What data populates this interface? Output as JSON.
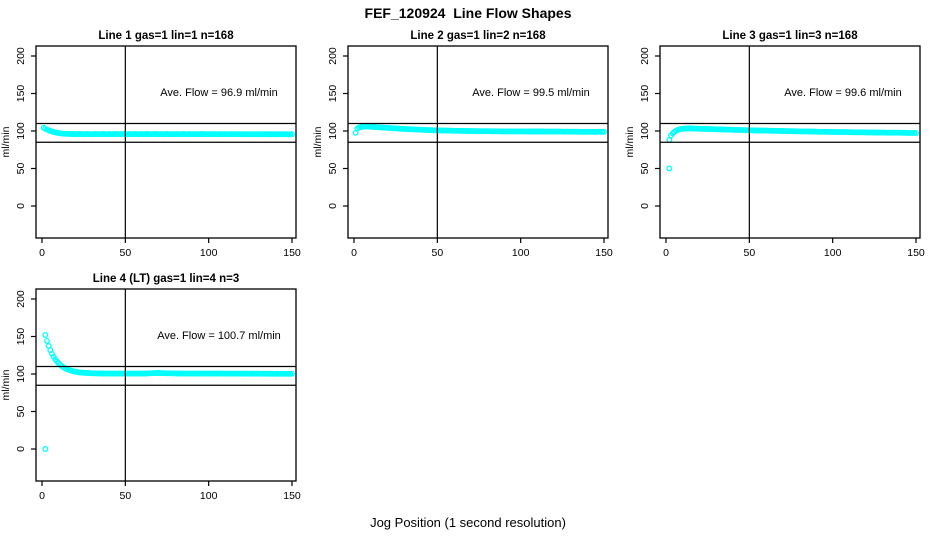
{
  "main_title": "FEF_120924  Line Flow Shapes",
  "xlabel": "Jog Position (1 second resolution)",
  "colors": {
    "point": "#00FFFF",
    "axis": "#000000",
    "text": "#000000",
    "background": "#FFFFFF"
  },
  "chart_data": [
    {
      "type": "scatter",
      "title": "Line 1 gas=1 lin=1 n=168",
      "annotation": "Ave. Flow =  96.9  ml/min",
      "ave_flow_ml_min": 96.9,
      "ylabel": "ml/min",
      "xticks": [
        0,
        50,
        100,
        150
      ],
      "yticks": [
        0,
        50,
        100,
        150,
        200
      ],
      "xlim": [
        0,
        150
      ],
      "ylim": [
        0,
        200
      ],
      "grid": false,
      "marker": "open-circle",
      "ref_hlines": [
        110,
        85
      ],
      "ref_vline": 50,
      "series": {
        "x0": 1,
        "dx": 1,
        "y": [
          104.2,
          103.0,
          101.9,
          101.0,
          100.1,
          99.4,
          98.7,
          98.1,
          97.6,
          97.2,
          96.9,
          96.6,
          96.4,
          96.3,
          96.2,
          96.1,
          96.0,
          96.0,
          95.9,
          95.9,
          95.8,
          95.9,
          96.0,
          95.9,
          95.8,
          95.9,
          96.0,
          95.9,
          95.8,
          95.8,
          95.9,
          96.0,
          95.9,
          95.8,
          95.9,
          95.9,
          96.0,
          95.9,
          95.8,
          95.9,
          95.9,
          95.8,
          95.9,
          96.0,
          95.9,
          95.8,
          95.9,
          95.9,
          96.0,
          95.9,
          95.8,
          95.9,
          95.9,
          95.8,
          95.9,
          96.0,
          95.9,
          95.8,
          95.9,
          95.9,
          95.8,
          95.9,
          96.0,
          95.9,
          95.8,
          95.9,
          95.9,
          96.0,
          95.9,
          95.8,
          95.9,
          95.9,
          95.8,
          95.9,
          96.0,
          95.9,
          95.8,
          95.9,
          95.9,
          95.8,
          95.9,
          95.9,
          95.8,
          95.9,
          96.0,
          95.9,
          95.8,
          95.9,
          95.9,
          95.8,
          95.9,
          95.9,
          95.8,
          95.9,
          95.9,
          96.0,
          95.8,
          95.9,
          95.8,
          95.9,
          95.8,
          95.9,
          95.8,
          95.9,
          95.8,
          95.8,
          95.9,
          95.8,
          95.8,
          95.9,
          95.8,
          95.8,
          95.9,
          95.8,
          95.7,
          95.8,
          95.9,
          95.8,
          95.7,
          95.8,
          95.8,
          95.7,
          95.8,
          95.8,
          95.7,
          95.8,
          95.8,
          95.7,
          95.8,
          95.7,
          95.7,
          95.8,
          95.7,
          95.7,
          95.8,
          95.7,
          95.6,
          95.7,
          95.8,
          95.7,
          95.6,
          95.7,
          95.7,
          95.6,
          95.7,
          95.6,
          95.7,
          95.6,
          95.6,
          95.7
        ]
      },
      "outliers": []
    },
    {
      "type": "scatter",
      "title": "Line 2 gas=1 lin=2 n=168",
      "annotation": "Ave. Flow =  99.5  ml/min",
      "ave_flow_ml_min": 99.5,
      "ylabel": "ml/min",
      "xticks": [
        0,
        50,
        100,
        150
      ],
      "yticks": [
        0,
        50,
        100,
        150,
        200
      ],
      "xlim": [
        0,
        150
      ],
      "ylim": [
        0,
        200
      ],
      "grid": false,
      "marker": "open-circle",
      "ref_hlines": [
        110,
        85
      ],
      "ref_vline": 50,
      "series": {
        "x0": 1,
        "dx": 1,
        "y": [
          97.6,
          103.2,
          104.6,
          105.3,
          105.7,
          105.9,
          106.0,
          105.9,
          105.8,
          105.7,
          105.5,
          105.4,
          105.2,
          105.1,
          104.9,
          104.8,
          104.6,
          104.5,
          104.3,
          104.2,
          104.0,
          103.9,
          103.7,
          103.6,
          103.4,
          103.3,
          103.2,
          103.0,
          102.9,
          102.8,
          102.6,
          102.5,
          102.4,
          102.3,
          102.2,
          102.1,
          102.0,
          101.9,
          101.8,
          101.7,
          101.6,
          101.5,
          101.4,
          101.3,
          101.2,
          101.2,
          101.1,
          101.0,
          100.9,
          100.9,
          100.8,
          100.7,
          100.7,
          100.6,
          100.6,
          100.5,
          100.5,
          100.4,
          100.4,
          100.3,
          100.3,
          100.2,
          100.2,
          100.1,
          100.1,
          100.1,
          100.0,
          100.0,
          100.0,
          99.9,
          99.9,
          99.9,
          99.8,
          99.8,
          99.8,
          99.8,
          99.7,
          99.7,
          99.7,
          99.7,
          99.7,
          99.6,
          99.6,
          99.6,
          99.6,
          99.6,
          99.6,
          99.5,
          99.5,
          99.5,
          99.5,
          99.5,
          99.5,
          99.5,
          99.4,
          99.4,
          99.4,
          99.4,
          99.4,
          99.4,
          99.4,
          99.4,
          99.4,
          99.3,
          99.3,
          99.3,
          99.3,
          99.3,
          99.3,
          99.3,
          99.3,
          99.3,
          99.3,
          99.2,
          99.2,
          99.2,
          99.2,
          99.2,
          99.2,
          99.2,
          99.2,
          99.2,
          99.2,
          99.2,
          99.1,
          99.1,
          99.1,
          99.1,
          99.1,
          99.1,
          99.1,
          99.1,
          99.1,
          99.1,
          99.1,
          99.0,
          99.0,
          99.0,
          99.0,
          99.0,
          99.0,
          99.0,
          99.0,
          99.0,
          99.0,
          98.9,
          98.9,
          98.9,
          98.9,
          98.9
        ]
      },
      "outliers": []
    },
    {
      "type": "scatter",
      "title": "Line 3 gas=1 lin=3 n=168",
      "annotation": "Ave. Flow =  99.6  ml/min",
      "ave_flow_ml_min": 99.6,
      "ylabel": "ml/min",
      "xticks": [
        0,
        50,
        100,
        150
      ],
      "yticks": [
        0,
        50,
        100,
        150,
        200
      ],
      "xlim": [
        0,
        150
      ],
      "ylim": [
        0,
        200
      ],
      "grid": false,
      "marker": "open-circle",
      "ref_hlines": [
        110,
        85
      ],
      "ref_vline": 50,
      "series": {
        "x0": 3,
        "dx": 1,
        "y": [
          94.0,
          96.8,
          98.8,
          100.3,
          101.4,
          102.2,
          102.7,
          103.0,
          103.2,
          103.3,
          103.4,
          103.4,
          103.3,
          103.3,
          103.2,
          103.1,
          103.1,
          103.0,
          102.9,
          102.8,
          102.8,
          102.7,
          102.6,
          102.5,
          102.5,
          102.4,
          102.3,
          102.3,
          102.2,
          102.1,
          102.1,
          102.0,
          101.9,
          101.9,
          101.8,
          101.7,
          101.7,
          101.6,
          101.5,
          101.5,
          101.4,
          101.4,
          101.3,
          101.2,
          101.2,
          101.1,
          101.1,
          101.0,
          100.9,
          100.9,
          100.8,
          100.8,
          100.7,
          100.7,
          100.6,
          100.6,
          100.5,
          100.5,
          100.4,
          100.4,
          100.3,
          100.3,
          100.2,
          100.2,
          100.1,
          100.1,
          100.0,
          100.0,
          99.9,
          99.9,
          99.8,
          99.8,
          99.7,
          99.7,
          99.7,
          99.6,
          99.6,
          99.5,
          99.5,
          99.4,
          99.4,
          99.4,
          99.3,
          99.3,
          99.2,
          99.2,
          99.2,
          99.1,
          99.1,
          99.0,
          99.0,
          99.0,
          98.9,
          98.9,
          98.9,
          98.8,
          98.8,
          98.8,
          98.7,
          98.7,
          98.7,
          98.6,
          98.6,
          98.6,
          98.5,
          98.5,
          98.5,
          98.4,
          98.4,
          98.4,
          98.3,
          98.3,
          98.3,
          98.3,
          98.2,
          98.2,
          98.2,
          98.1,
          98.1,
          98.1,
          98.1,
          98.0,
          98.0,
          98.0,
          98.0,
          97.9,
          97.9,
          97.9,
          97.9,
          97.8,
          97.8,
          97.8,
          97.8,
          97.7,
          97.7,
          97.7,
          97.7,
          97.7,
          97.6,
          97.6,
          97.6,
          97.6,
          97.5,
          97.5,
          97.5,
          97.5,
          97.5,
          97.4
        ]
      },
      "outliers": [
        [
          2,
          88
        ],
        [
          2,
          50
        ]
      ]
    },
    {
      "type": "scatter",
      "title": "Line 4 (LT) gas=1 lin=4 n=3",
      "annotation": "Ave. Flow =  100.7  ml/min",
      "ave_flow_ml_min": 100.7,
      "ylabel": "ml/min",
      "xticks": [
        0,
        50,
        100,
        150
      ],
      "yticks": [
        0,
        50,
        100,
        150,
        200
      ],
      "xlim": [
        0,
        150
      ],
      "ylim": [
        0,
        200
      ],
      "grid": false,
      "marker": "open-circle",
      "ref_hlines": [
        110,
        85
      ],
      "ref_vline": 50,
      "series": {
        "x0": 2,
        "dx": 1,
        "y": [
          152.0,
          144.1,
          137.4,
          131.7,
          127.0,
          123.0,
          119.5,
          116.6,
          114.2,
          112.1,
          110.3,
          108.8,
          107.5,
          106.5,
          105.6,
          104.8,
          104.2,
          103.6,
          103.1,
          102.7,
          102.3,
          102.0,
          101.8,
          101.6,
          101.4,
          101.3,
          101.2,
          101.1,
          101.0,
          100.9,
          100.9,
          100.8,
          100.8,
          100.7,
          100.7,
          100.7,
          100.6,
          100.6,
          100.6,
          100.6,
          100.5,
          100.6,
          100.5,
          100.5,
          100.6,
          100.5,
          100.5,
          100.6,
          100.5,
          100.5,
          100.6,
          100.5,
          100.6,
          100.5,
          100.5,
          100.6,
          100.6,
          100.5,
          100.6,
          100.7,
          100.7,
          100.8,
          100.9,
          101.0,
          101.1,
          101.2,
          101.2,
          101.3,
          101.3,
          101.2,
          101.2,
          101.1,
          101.1,
          101.0,
          101.0,
          100.9,
          100.9,
          100.8,
          100.8,
          100.7,
          100.7,
          100.6,
          100.6,
          100.6,
          100.5,
          100.5,
          100.6,
          100.5,
          100.5,
          100.6,
          100.5,
          100.5,
          100.6,
          100.5,
          100.5,
          100.6,
          100.5,
          100.5,
          100.6,
          100.5,
          100.5,
          100.6,
          100.5,
          100.5,
          100.6,
          100.5,
          100.4,
          100.5,
          100.5,
          100.4,
          100.5,
          100.5,
          100.4,
          100.5,
          100.4,
          100.5,
          100.4,
          100.4,
          100.5,
          100.4,
          100.4,
          100.5,
          100.4,
          100.4,
          100.5,
          100.4,
          100.4,
          100.5,
          100.4,
          100.4,
          100.3,
          100.4,
          100.4,
          100.3,
          100.4,
          100.3,
          100.4,
          100.3,
          100.3,
          100.4,
          100.3,
          100.3,
          100.4,
          100.3,
          100.3,
          100.2,
          100.3,
          100.3,
          100.2
        ]
      },
      "outliers": [
        [
          2,
          0
        ]
      ]
    }
  ]
}
